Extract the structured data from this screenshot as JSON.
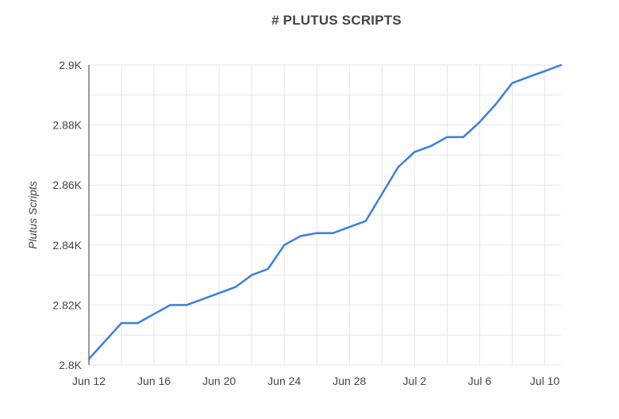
{
  "chart_data": {
    "type": "line",
    "title": "# PLUTUS SCRIPTS",
    "xlabel": "",
    "ylabel": "Plutus Scripts",
    "ylim": [
      2800,
      2900
    ],
    "yticks": [
      2800,
      2820,
      2840,
      2860,
      2880,
      2900
    ],
    "ytick_labels": [
      "2.8K",
      "2.82K",
      "2.84K",
      "2.86K",
      "2.88K",
      "2.9K"
    ],
    "x": [
      "2022-06-12",
      "2022-06-13",
      "2022-06-14",
      "2022-06-15",
      "2022-06-16",
      "2022-06-17",
      "2022-06-18",
      "2022-06-19",
      "2022-06-20",
      "2022-06-21",
      "2022-06-22",
      "2022-06-23",
      "2022-06-24",
      "2022-06-25",
      "2022-06-26",
      "2022-06-27",
      "2022-06-28",
      "2022-06-29",
      "2022-06-30",
      "2022-07-01",
      "2022-07-02",
      "2022-07-03",
      "2022-07-04",
      "2022-07-05",
      "2022-07-06",
      "2022-07-07",
      "2022-07-08",
      "2022-07-09",
      "2022-07-10",
      "2022-07-11"
    ],
    "xticks": [
      "2022-06-12",
      "2022-06-16",
      "2022-06-20",
      "2022-06-24",
      "2022-06-28",
      "2022-07-02",
      "2022-07-06",
      "2022-07-10"
    ],
    "xtick_labels": [
      "Jun 12",
      "Jun 16",
      "Jun 20",
      "Jun 24",
      "Jun 28",
      "Jul 2",
      "Jul 6",
      "Jul 10"
    ],
    "grid": true,
    "series": [
      {
        "name": "",
        "color": "#3a7ee4",
        "values": [
          2802,
          2808,
          2814,
          2814,
          2817,
          2820,
          2820,
          2822,
          2824,
          2826,
          2830,
          2832,
          2840,
          2843,
          2844,
          2844,
          2846,
          2848,
          2857,
          2866,
          2871,
          2873,
          2876,
          2876,
          2881,
          2887,
          2894,
          2896,
          2898,
          2900
        ]
      }
    ]
  }
}
